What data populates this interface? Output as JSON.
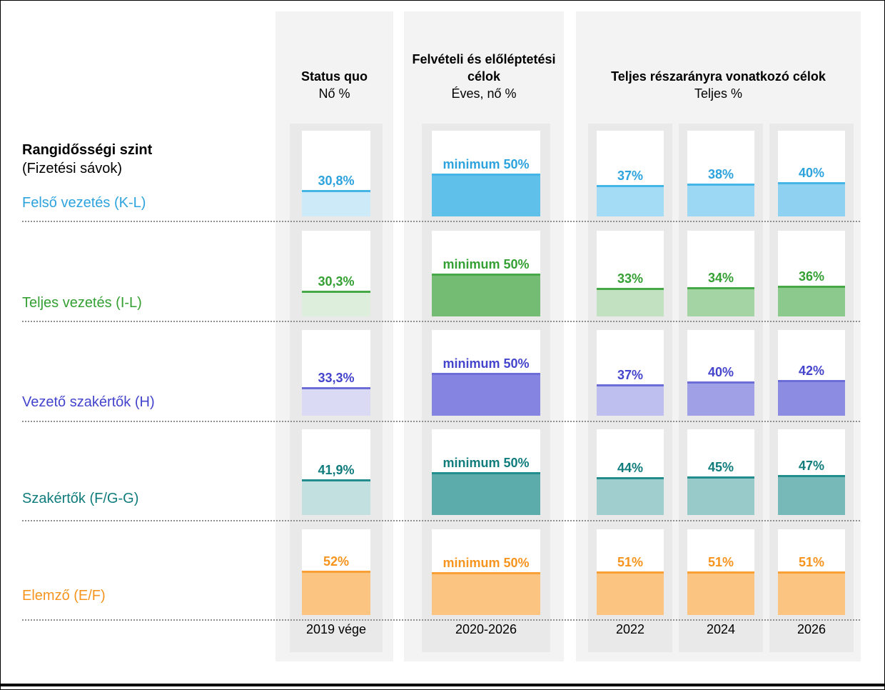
{
  "left_panel": {
    "title_line1": "Rangidősségi szint",
    "title_line2": "(Fizetési sávok)",
    "categories": [
      {
        "label": "Felső vezetés (K-L)",
        "color": "#2DA3DE"
      },
      {
        "label": "Teljes vezetés (I-L)",
        "color": "#34A033"
      },
      {
        "label": "Vezető szakértők (H)",
        "color": "#4444CC"
      },
      {
        "label": "Szakértők (F/G-G)",
        "color": "#107C7C"
      },
      {
        "label": "Elemző (E/F)",
        "color": "#F6941E"
      }
    ]
  },
  "columns": {
    "status_quo": {
      "title": "Status quo",
      "subtitle": "Nő %",
      "axis": "2019 vége"
    },
    "targets": {
      "title": "Felvételi és előléptetési célok",
      "subtitle": "Éves, nő %",
      "axis": "2020-2026"
    },
    "share": {
      "title": "Teljes részarányra vonatkozó célok",
      "subtitle": "Teljes %",
      "axes": [
        "2022",
        "2024",
        "2026"
      ]
    }
  },
  "chart_data": {
    "type": "bar",
    "unit": "%",
    "ylim": [
      0,
      100
    ],
    "column_keys": [
      "status_quo",
      "target",
      "y2022",
      "y2024",
      "y2026"
    ],
    "column_axis_labels": [
      "2019 vége",
      "2020-2026",
      "2022",
      "2024",
      "2026"
    ],
    "rows": [
      {
        "id": "felso-vezetes",
        "category": "Felső vezetés (K-L)",
        "text_color": "#2DA3DE",
        "line_color": "#45B4E6",
        "cells": {
          "status_quo": {
            "label": "30,8%",
            "value": 30.8,
            "fill": "#CDEAF8"
          },
          "target": {
            "label": "minimum 50%",
            "value": 50,
            "fill": "#5FC0EA"
          },
          "y2022": {
            "label": "37%",
            "value": 37,
            "fill": "#A5DCF5"
          },
          "y2024": {
            "label": "38%",
            "value": 38,
            "fill": "#9CD8F3"
          },
          "y2026": {
            "label": "40%",
            "value": 40,
            "fill": "#8ED1F0"
          }
        }
      },
      {
        "id": "teljes-vezetes",
        "category": "Teljes vezetés (I-L)",
        "text_color": "#34A033",
        "line_color": "#47A847",
        "cells": {
          "status_quo": {
            "label": "30,3%",
            "value": 30.3,
            "fill": "#DEEEDD"
          },
          "target": {
            "label": "minimum 50%",
            "value": 50,
            "fill": "#74BC74"
          },
          "y2022": {
            "label": "33%",
            "value": 33,
            "fill": "#C1E1C1"
          },
          "y2024": {
            "label": "34%",
            "value": 34,
            "fill": "#A4D4A4"
          },
          "y2026": {
            "label": "36%",
            "value": 36,
            "fill": "#8CC98C"
          }
        }
      },
      {
        "id": "vezeto-szakertok",
        "category": "Vezető szakértők (H)",
        "text_color": "#4444CC",
        "line_color": "#6D6DD8",
        "cells": {
          "status_quo": {
            "label": "33,3%",
            "value": 33.3,
            "fill": "#DADAF5"
          },
          "target": {
            "label": "minimum 50%",
            "value": 50,
            "fill": "#8585E1"
          },
          "y2022": {
            "label": "37%",
            "value": 37,
            "fill": "#BFBFEF"
          },
          "y2024": {
            "label": "40%",
            "value": 40,
            "fill": "#A0A0E7"
          },
          "y2026": {
            "label": "42%",
            "value": 42,
            "fill": "#8C8CE2"
          }
        }
      },
      {
        "id": "szakertok",
        "category": "Szakértők (F/G-G)",
        "text_color": "#107C7C",
        "line_color": "#238C8C",
        "cells": {
          "status_quo": {
            "label": "41,9%",
            "value": 41.9,
            "fill": "#C3E0E0"
          },
          "target": {
            "label": "minimum 50%",
            "value": 50,
            "fill": "#5CACAC"
          },
          "y2022": {
            "label": "44%",
            "value": 44,
            "fill": "#A0CECE"
          },
          "y2024": {
            "label": "45%",
            "value": 45,
            "fill": "#98CACA"
          },
          "y2026": {
            "label": "47%",
            "value": 47,
            "fill": "#77B8B8"
          }
        }
      },
      {
        "id": "elemzo",
        "category": "Elemző (E/F)",
        "text_color": "#F6941E",
        "line_color": "#F89F35",
        "cells": {
          "status_quo": {
            "label": "52%",
            "value": 52,
            "fill": "#FBC480"
          },
          "target": {
            "label": "minimum 50%",
            "value": 50,
            "fill": "#FBC480"
          },
          "y2022": {
            "label": "51%",
            "value": 51,
            "fill": "#FBC480"
          },
          "y2024": {
            "label": "51%",
            "value": 51,
            "fill": "#FBC480"
          },
          "y2026": {
            "label": "51%",
            "value": 51,
            "fill": "#FBC480"
          }
        }
      }
    ]
  }
}
